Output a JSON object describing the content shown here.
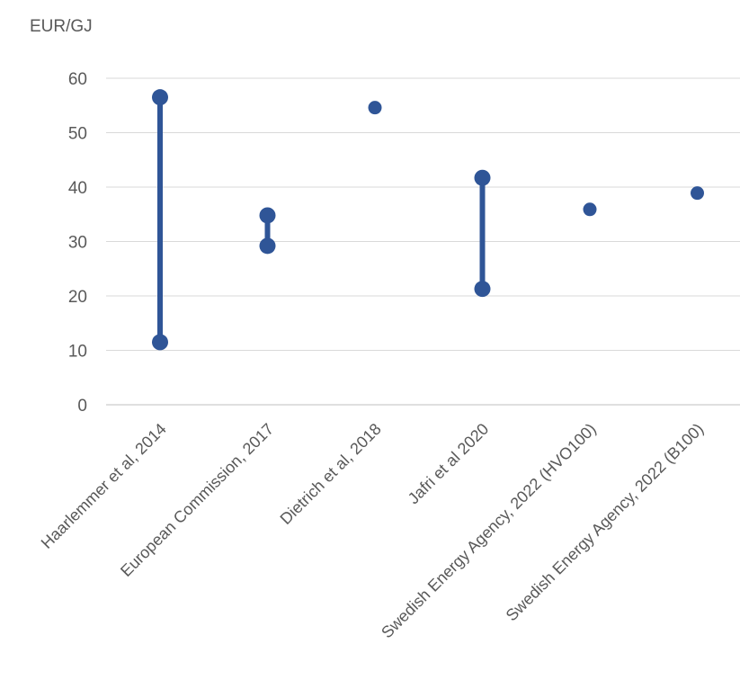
{
  "chart_data": {
    "type": "scatter",
    "ylabel": "EUR/GJ",
    "ylim": [
      0,
      60
    ],
    "yticks": [
      0,
      10,
      20,
      30,
      40,
      50,
      60
    ],
    "grid": true,
    "series_color": "#2f5597",
    "categories": [
      "Haarlemmer et al, 2014",
      "European Commission, 2017",
      "Dietrich et al, 2018",
      "Jafri et al 2020",
      "Swedish Energy Agency, 2022 (HVO100)",
      "Swedish Energy Agency, 2022 (B100)"
    ],
    "ranges": [
      {
        "category": "Haarlemmer et al, 2014",
        "low": 11.5,
        "high": 56.5
      },
      {
        "category": "European Commission, 2017",
        "low": 29.2,
        "high": 34.8
      },
      {
        "category": "Dietrich et al, 2018",
        "value": 54.6
      },
      {
        "category": "Jafri et al 2020",
        "low": 21.3,
        "high": 41.7
      },
      {
        "category": "Swedish Energy Agency, 2022 (HVO100)",
        "value": 35.9
      },
      {
        "category": "Swedish Energy Agency, 2022 (B100)",
        "value": 38.9
      }
    ]
  }
}
